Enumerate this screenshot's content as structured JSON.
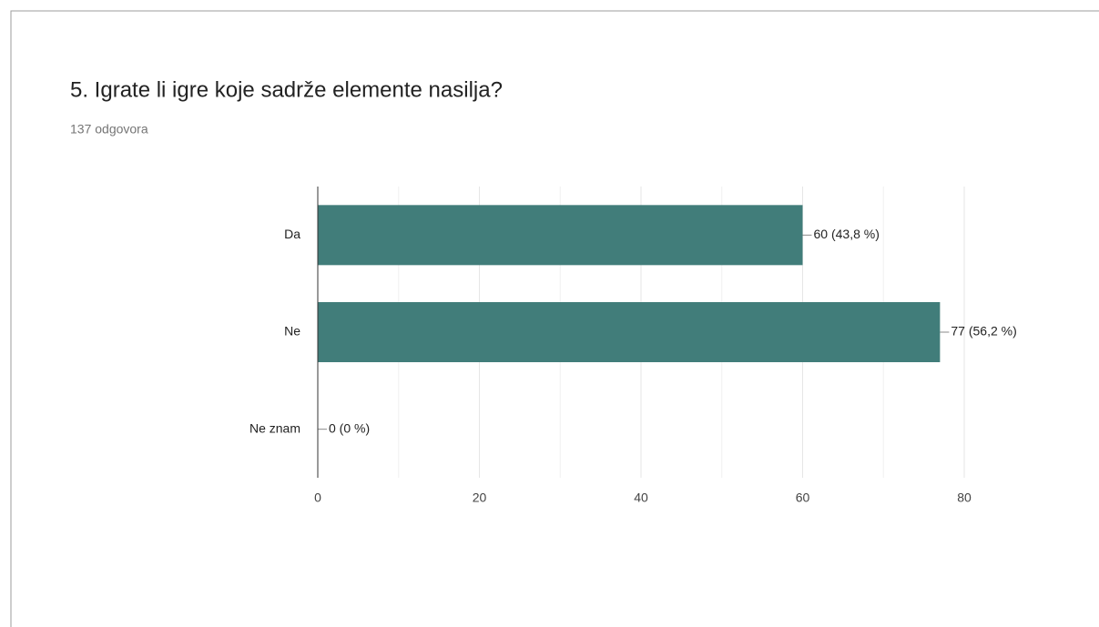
{
  "chart_data": {
    "type": "bar",
    "orientation": "horizontal",
    "title": "5. Igrate li igre koje sadrže elemente nasilja?",
    "subtitle": "137 odgovora",
    "categories": [
      "Da",
      "Ne",
      "Ne znam"
    ],
    "values": [
      60,
      77,
      0
    ],
    "value_labels": [
      "60 (43,8 %)",
      "77 (56,2 %)",
      "0 (0 %)"
    ],
    "color": "#417d7a",
    "xlim": [
      0,
      80
    ],
    "xticks": [
      0,
      20,
      40,
      60,
      80
    ],
    "minor_xticks": [
      10,
      30,
      50,
      70
    ],
    "grid": true
  }
}
